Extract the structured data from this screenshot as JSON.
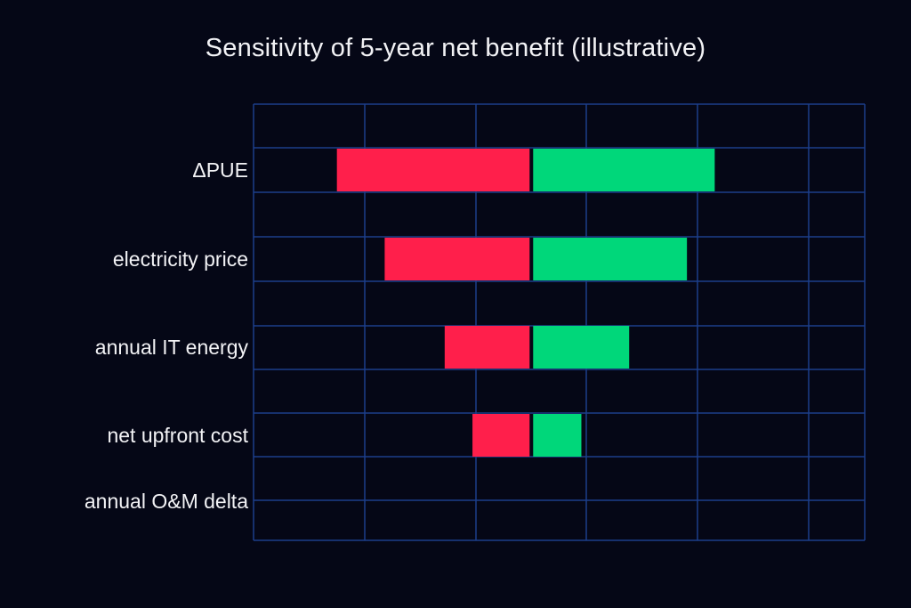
{
  "chart_data": {
    "type": "bar",
    "orientation": "horizontal",
    "subtype": "tornado",
    "title": "Sensitivity of 5-year net benefit (illustrative)",
    "xlabel": "",
    "ylabel": "",
    "categories": [
      "ΔPUE",
      "electricity price",
      "annual IT energy",
      "net upfront cost",
      "annual O&M delta"
    ],
    "xlim": [
      -2.5,
      3.0
    ],
    "baseline": 0,
    "series": [
      {
        "values": [
          -1.75,
          -1.32,
          -0.78,
          -0.53,
          0
        ],
        "color": "#ff1f4b"
      },
      {
        "values": [
          1.65,
          1.4,
          0.88,
          0.45,
          0
        ],
        "color": "#00d77a"
      }
    ],
    "grid": true,
    "grid_color": "#1c3f8a",
    "legend": "none"
  }
}
